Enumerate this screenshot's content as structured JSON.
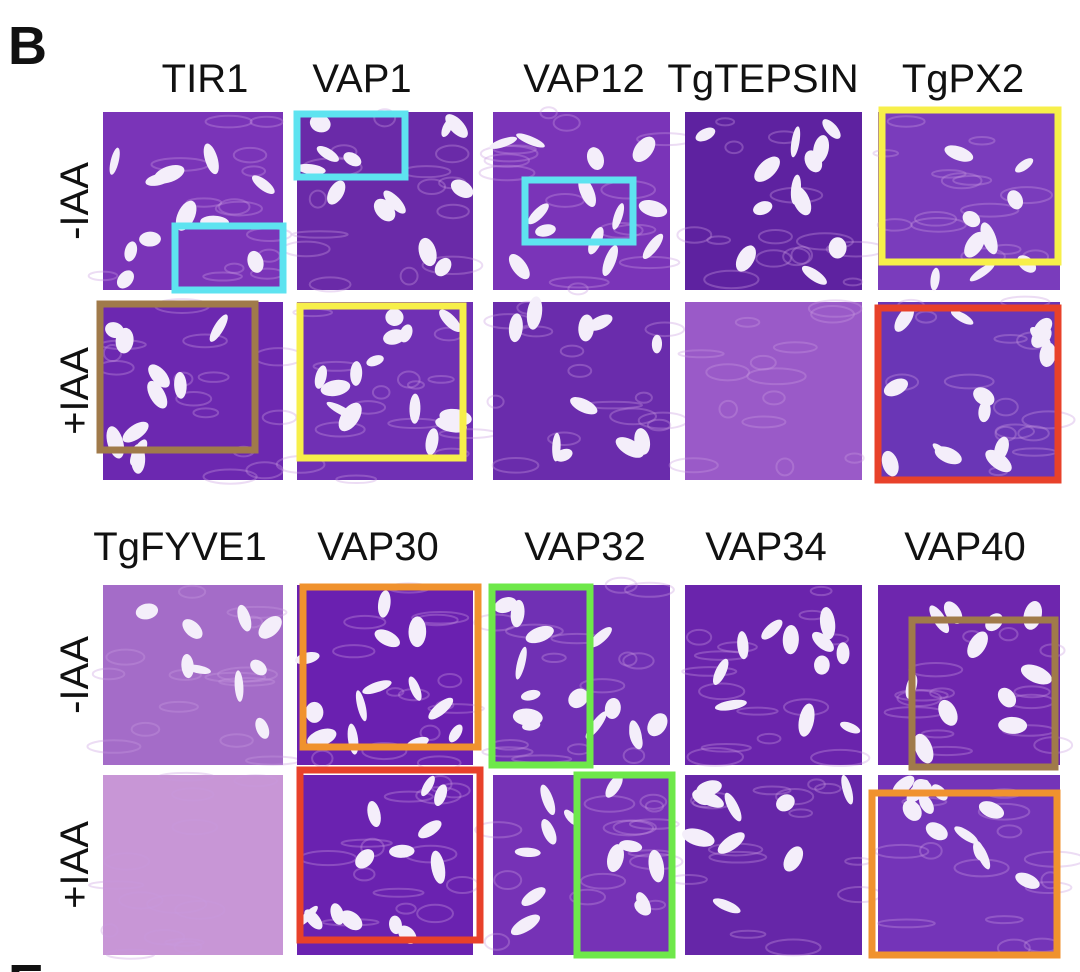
{
  "panel_label": "B",
  "groups": [
    {
      "columns": [
        "TIR1",
        "VAP1",
        "VAP12",
        "TgTEPSIN",
        "TgPX2"
      ],
      "rows": [
        "-IAA",
        "+IAA"
      ]
    },
    {
      "columns": [
        "TgFYVE1",
        "VAP30",
        "VAP32",
        "VAP34",
        "VAP40"
      ],
      "rows": [
        "-IAA",
        "+IAA"
      ]
    }
  ],
  "next_panel_label": "E"
}
